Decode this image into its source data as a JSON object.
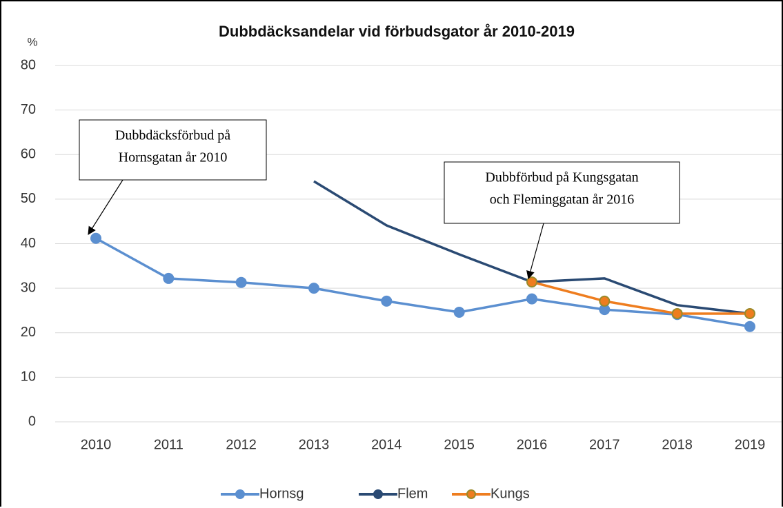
{
  "chart_data": {
    "type": "line",
    "title": "Dubbdäcksandelar vid förbudsgator år 2010-2019",
    "y_label": "%",
    "categories": [
      "2010",
      "2011",
      "2012",
      "2013",
      "2014",
      "2015",
      "2016",
      "2017",
      "2018",
      "2019"
    ],
    "series": [
      {
        "name": "Hornsg",
        "color": "#5b8fd0",
        "marker": true,
        "values": [
          41.2,
          32.2,
          31.3,
          30.0,
          27.1,
          24.6,
          27.6,
          25.2,
          24.1,
          21.4
        ]
      },
      {
        "name": "Flem",
        "color": "#2a4a73",
        "marker": false,
        "values": [
          null,
          null,
          null,
          54.0,
          44.1,
          37.6,
          31.4,
          32.2,
          26.2,
          24.3
        ]
      },
      {
        "name": "Kungs",
        "color": "#ee7d1f",
        "marker_edge": "#9a8a2a",
        "marker": true,
        "values": [
          null,
          null,
          null,
          null,
          null,
          null,
          31.4,
          27.1,
          24.3,
          24.3
        ]
      }
    ],
    "ylim": [
      0,
      80
    ],
    "yticks": [
      0,
      10,
      20,
      30,
      40,
      50,
      60,
      70,
      80
    ],
    "grid": true,
    "legend": "bottom",
    "annotations": [
      {
        "lines": [
          "Dubbdäcksförbud på",
          "Hornsgatan år 2010"
        ]
      },
      {
        "lines": [
          "Dubbförbud på Kungsgatan",
          "och Fleminggatan år 2016"
        ]
      }
    ]
  }
}
